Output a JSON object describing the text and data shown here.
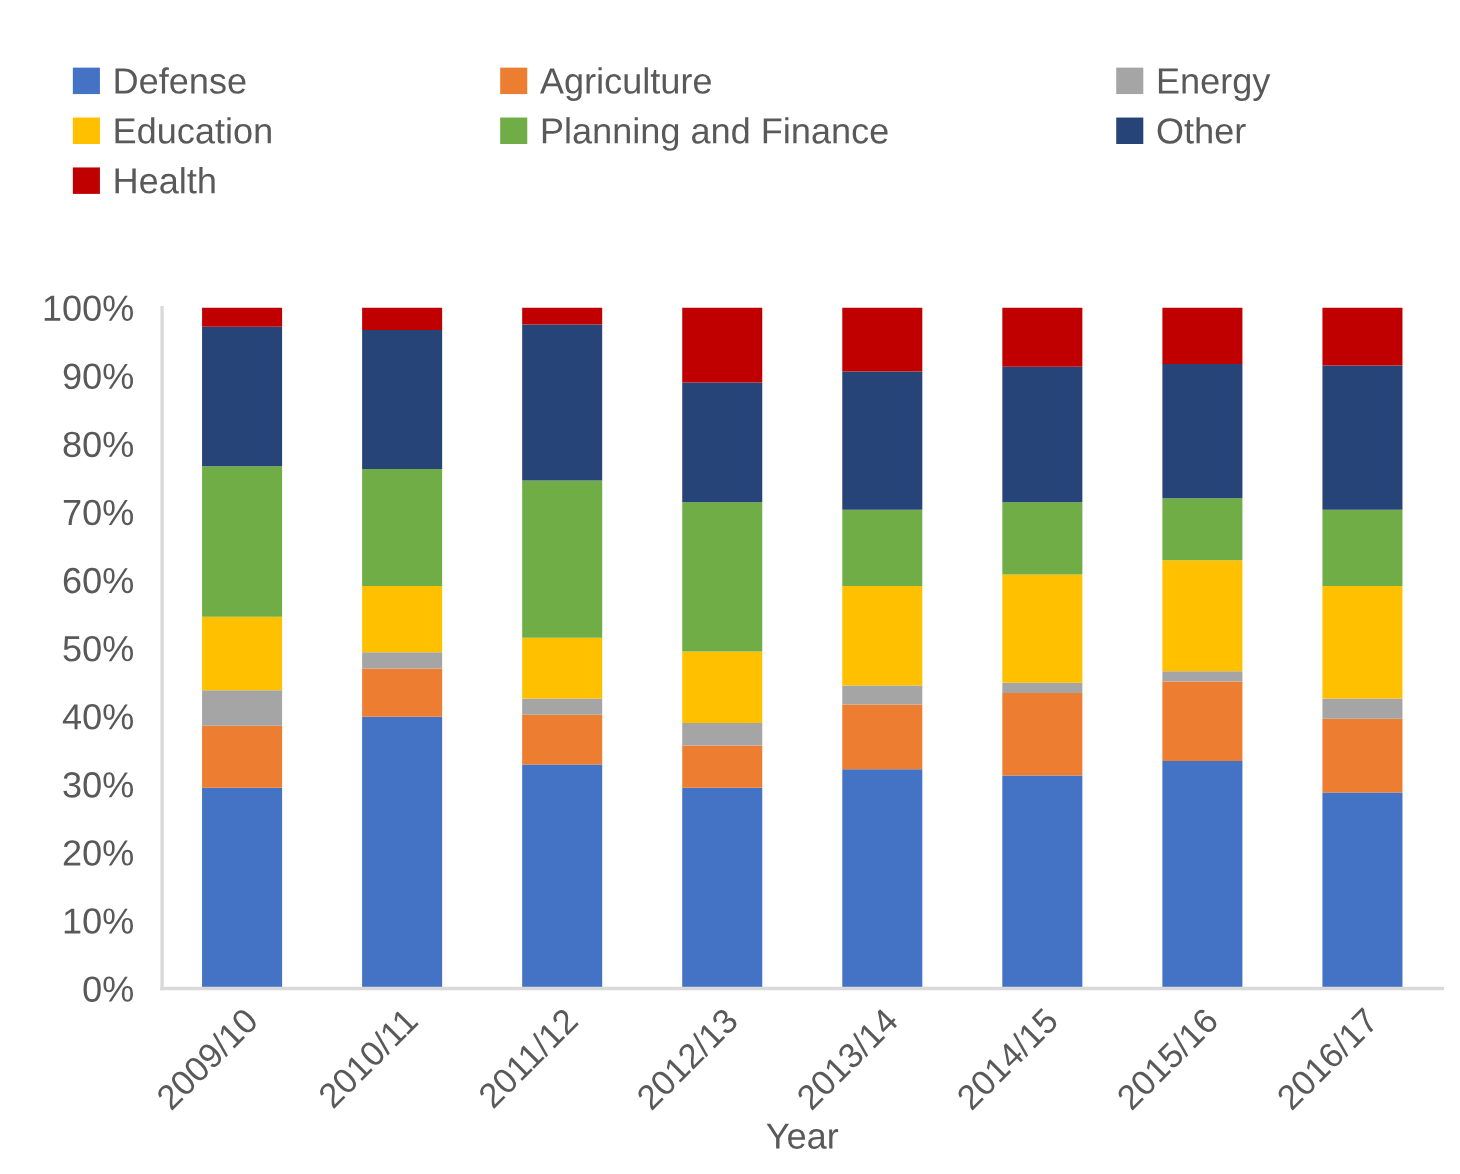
{
  "chart_data": {
    "type": "bar",
    "stacked": true,
    "xlabel": "Year",
    "legend": "top",
    "categories": [
      "2009/10",
      "2010/11",
      "2011/12",
      "2012/13",
      "2013/14",
      "2014/15",
      "2015/16",
      "2016/17"
    ],
    "series": [
      {
        "name": "Defense",
        "color": "#4472c4",
        "values": [
          29.5,
          39.9,
          32.9,
          29.5,
          32.2,
          31.3,
          33.4,
          28.8
        ]
      },
      {
        "name": "Agriculture",
        "color": "#ed7d31",
        "values": [
          9.1,
          7.1,
          7.3,
          6.2,
          9.5,
          12.1,
          11.7,
          10.8
        ]
      },
      {
        "name": "Energy",
        "color": "#a5a5a5",
        "values": [
          5.2,
          2.4,
          2.4,
          3.3,
          2.8,
          1.5,
          1.5,
          3.0
        ]
      },
      {
        "name": "Education",
        "color": "#ffc000",
        "values": [
          10.8,
          9.7,
          8.9,
          10.5,
          14.6,
          15.9,
          16.3,
          16.5
        ]
      },
      {
        "name": "Planning and Finance",
        "color": "#70ad47",
        "values": [
          22.1,
          17.2,
          23.1,
          21.9,
          11.2,
          10.6,
          9.1,
          11.2
        ]
      },
      {
        "name": "Other",
        "color": "#264478",
        "values": [
          20.5,
          20.4,
          22.9,
          17.6,
          20.3,
          19.9,
          19.7,
          21.2
        ]
      },
      {
        "name": "Health",
        "color": "#c00000",
        "values": [
          2.8,
          3.3,
          2.5,
          11.0,
          9.4,
          8.7,
          8.3,
          8.5
        ]
      }
    ],
    "ylim": [
      0,
      100
    ],
    "yticks": [
      {
        "value": 0,
        "label": "0%"
      },
      {
        "value": 10,
        "label": "10%"
      },
      {
        "value": 20,
        "label": "20%"
      },
      {
        "value": 30,
        "label": "30%"
      },
      {
        "value": 40,
        "label": "40%"
      },
      {
        "value": 50,
        "label": "50%"
      },
      {
        "value": 60,
        "label": "60%"
      },
      {
        "value": 70,
        "label": "70%"
      },
      {
        "value": 80,
        "label": "80%"
      },
      {
        "value": 90,
        "label": "90%"
      },
      {
        "value": 100,
        "label": "100%"
      }
    ]
  }
}
